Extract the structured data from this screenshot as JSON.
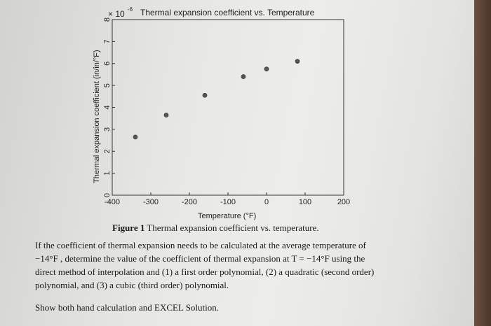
{
  "chart_data": {
    "type": "scatter",
    "title": "Thermal expansion coefficient vs. Temperature",
    "xlabel": "Temperature (°F)",
    "ylabel": "Thermal expansion coefficient (in/in/°F)",
    "y_multiplier": "× 10",
    "y_exponent": "-6",
    "xlim": [
      -400,
      200
    ],
    "ylim": [
      0,
      8
    ],
    "x_ticks": [
      "-400",
      "-300",
      "-200",
      "-100",
      "0",
      "100",
      "200"
    ],
    "y_ticks": [
      "0",
      "1",
      "2",
      "3",
      "4",
      "5",
      "6",
      "7",
      "8"
    ],
    "points": [
      {
        "x": -340,
        "y": 2.65
      },
      {
        "x": -260,
        "y": 3.65
      },
      {
        "x": -160,
        "y": 4.55
      },
      {
        "x": -60,
        "y": 5.4
      },
      {
        "x": 0,
        "y": 5.75
      },
      {
        "x": 80,
        "y": 6.1
      }
    ],
    "grid": false
  },
  "caption": {
    "label": "Figure 1",
    "text": "Thermal expansion coefficient vs. temperature."
  },
  "problem": {
    "line1": "If the coefficient of thermal expansion needs to be calculated at the average temperature of",
    "line2": "−14°F , determine the value of the coefficient of thermal expansion at T = −14°F using the",
    "line3": "direct method of interpolation and (1) a first order polynomial, (2) a quadratic (second order)",
    "line4": "polynomial, and (3) a cubic (third order) polynomial.",
    "show": "Show both hand calculation and EXCEL Solution."
  }
}
